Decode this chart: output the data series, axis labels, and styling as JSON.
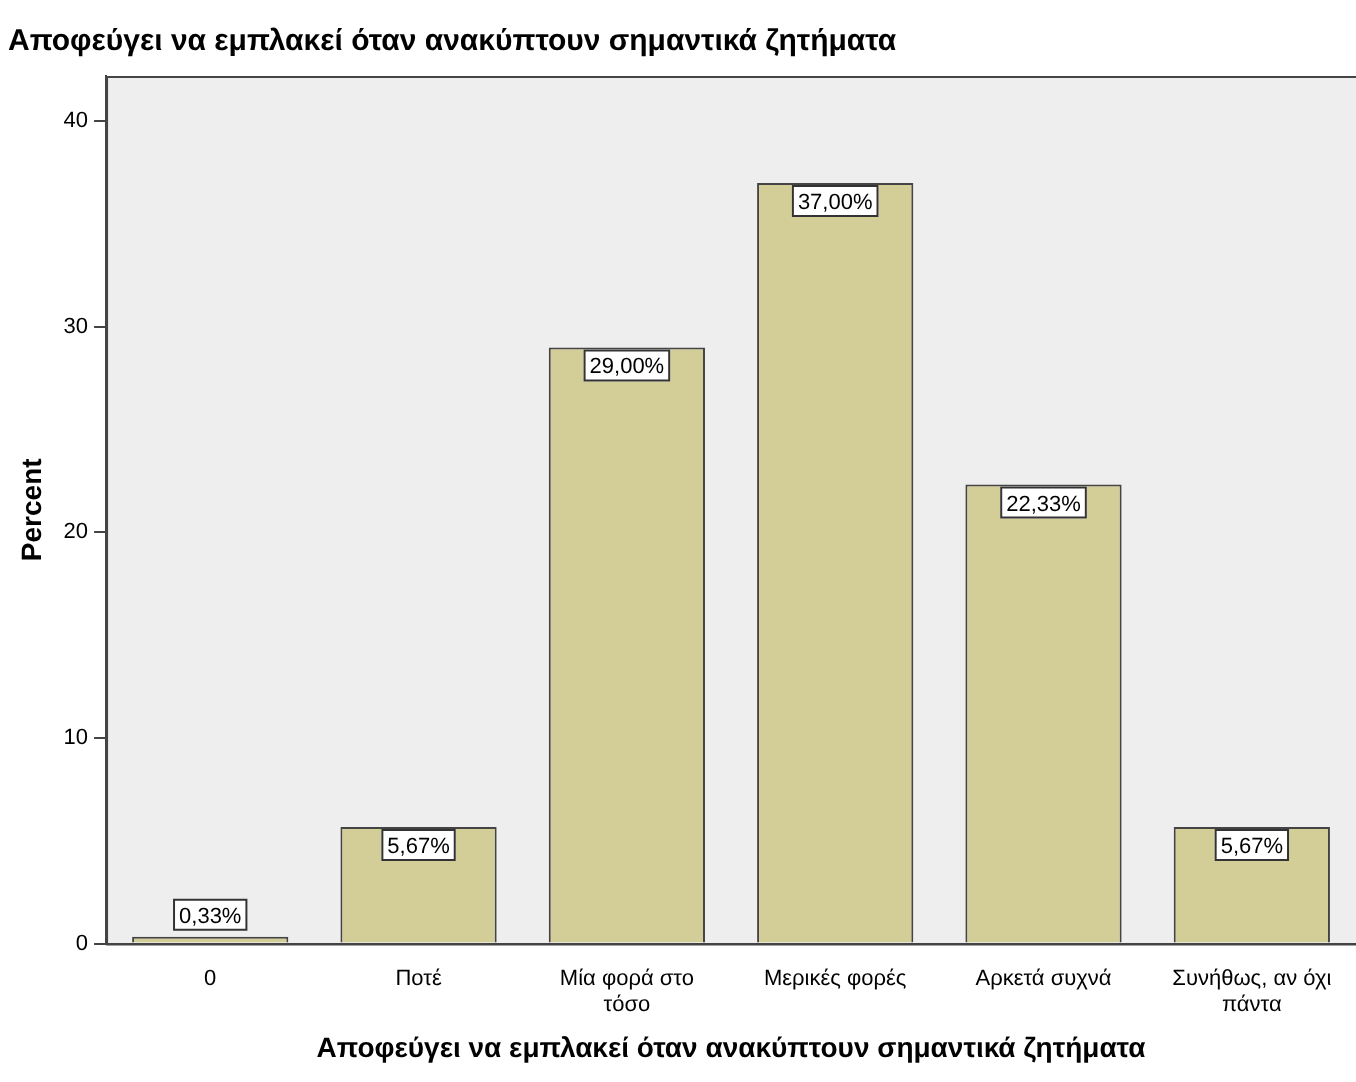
{
  "chart_data": {
    "type": "bar",
    "title": "Αποφεύγει να εμπλακεί όταν ανακύπτουν σημαντικά ζητήματα",
    "xlabel": "Αποφεύγει να εμπλακεί όταν ανακύπτουν σημαντικά ζητήματα",
    "ylabel": "Percent",
    "categories": [
      "0",
      "Ποτέ",
      "Μία φορά στο τόσο",
      "Μερικές φορές",
      "Αρκετά συχνά",
      "Συνήθως, αν όχι πάντα"
    ],
    "values": [
      0.33,
      5.67,
      29.0,
      37.0,
      22.33,
      5.67
    ],
    "value_labels": [
      "0,33%",
      "5,67%",
      "29,00%",
      "37,00%",
      "22,33%",
      "5,67%"
    ],
    "color": "#d3ce97",
    "ylim": [
      0,
      42.2
    ],
    "yticks": [
      0,
      10,
      20,
      30,
      40
    ],
    "grid": false,
    "legend": false
  }
}
